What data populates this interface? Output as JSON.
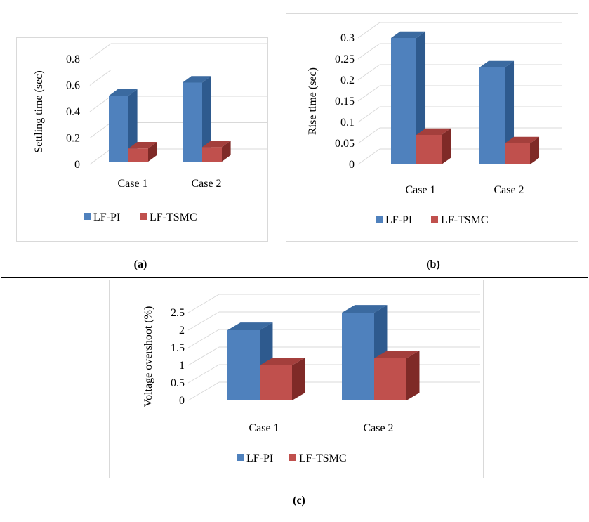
{
  "chart_data": [
    {
      "id": "a",
      "type": "bar",
      "caption": "(a)",
      "ylabel": "Settling time (sec)",
      "categories": [
        "Case 1",
        "Case 2"
      ],
      "yticks": [
        "0",
        "0.2",
        "0.4",
        "0.6",
        "0.8"
      ],
      "ylim": [
        0,
        0.8
      ],
      "series": [
        {
          "name": "LF-PI",
          "values": [
            0.5,
            0.6
          ],
          "color": "#4F81BD",
          "side": "#2E5A8E",
          "top": "#3B6AA0"
        },
        {
          "name": "LF-TSMC",
          "values": [
            0.1,
            0.11
          ],
          "color": "#C0504D",
          "side": "#7F2A27",
          "top": "#A43F3C"
        }
      ]
    },
    {
      "id": "b",
      "type": "bar",
      "caption": "(b)",
      "ylabel": "Rise time (sec)",
      "categories": [
        "Case 1",
        "Case 2"
      ],
      "yticks": [
        "0",
        "0.05",
        "0.1",
        "0.15",
        "0.2",
        "0.25",
        "0.3"
      ],
      "ylim": [
        0,
        0.3
      ],
      "series": [
        {
          "name": "LF-PI",
          "values": [
            0.3,
            0.23
          ],
          "color": "#4F81BD",
          "side": "#2E5A8E",
          "top": "#3B6AA0"
        },
        {
          "name": "LF-TSMC",
          "values": [
            0.07,
            0.05
          ],
          "color": "#C0504D",
          "side": "#7F2A27",
          "top": "#A43F3C"
        }
      ]
    },
    {
      "id": "c",
      "type": "bar",
      "caption": "(c)",
      "ylabel": "Voltage overshoot (%)",
      "categories": [
        "Case 1",
        "Case 2"
      ],
      "yticks": [
        "0",
        "0.5",
        "1",
        "1.5",
        "2",
        "2.5"
      ],
      "ylim": [
        0,
        2.5
      ],
      "series": [
        {
          "name": "LF-PI",
          "values": [
            2.0,
            2.5
          ],
          "color": "#4F81BD",
          "side": "#2E5A8E",
          "top": "#3B6AA0"
        },
        {
          "name": "LF-TSMC",
          "values": [
            1.0,
            1.2
          ],
          "color": "#C0504D",
          "side": "#7F2A27",
          "top": "#A43F3C"
        }
      ]
    }
  ]
}
